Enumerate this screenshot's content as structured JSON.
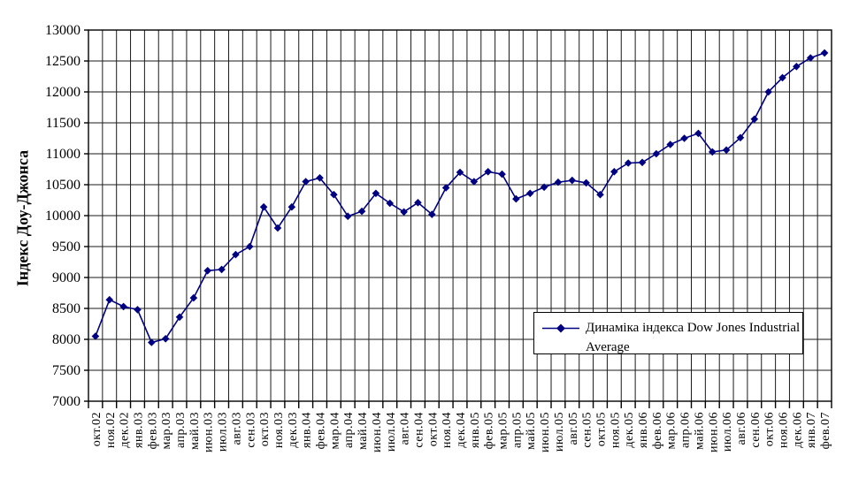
{
  "chart_data": {
    "type": "line",
    "title": "",
    "ylabel": "Індекс Доу-Джонса",
    "xlabel": "",
    "ylim": [
      7000,
      13000
    ],
    "ytick_step": 500,
    "grid": true,
    "legend": {
      "position": "right-middle",
      "lines": [
        "Динаміка індекса Dow Jones Industrial",
        "Average"
      ]
    },
    "categories": [
      "окт.02",
      "ноя.02",
      "дек.02",
      "янв.03",
      "фев.03",
      "мар.03",
      "апр.03",
      "май.03",
      "июн.03",
      "июл.03",
      "авг.03",
      "сен.03",
      "окт.03",
      "ноя.03",
      "дек.03",
      "янв.04",
      "фев.04",
      "мар.04",
      "апр.04",
      "май.04",
      "июн.04",
      "июл.04",
      "авг.04",
      "сен.04",
      "окт.04",
      "ноя.04",
      "дек.04",
      "янв.05",
      "фев.05",
      "мар.05",
      "апр.05",
      "май.05",
      "июн.05",
      "июл.05",
      "авг.05",
      "сен.05",
      "окт.05",
      "ноя.05",
      "дек.05",
      "янв.06",
      "фев.06",
      "мар.06",
      "апр.06",
      "май.06",
      "июн.06",
      "июл.06",
      "авг.06",
      "сен.06",
      "окт.06",
      "ноя.06",
      "дек.06",
      "янв.07",
      "фев.07"
    ],
    "series": [
      {
        "name": "Динаміка індекса Dow Jones Industrial Average",
        "color": "#000080",
        "marker": "diamond",
        "values": [
          8050,
          8640,
          8530,
          8480,
          7950,
          8010,
          8360,
          8670,
          9110,
          9130,
          9370,
          9500,
          10140,
          9800,
          10140,
          10550,
          10610,
          10340,
          9990,
          10070,
          10360,
          10200,
          10060,
          10210,
          10020,
          10450,
          10700,
          10550,
          10710,
          10670,
          10270,
          10360,
          10460,
          10540,
          10570,
          10530,
          10340,
          10710,
          10850,
          10860,
          11000,
          11150,
          11250,
          11330,
          11030,
          11060,
          11260,
          11560,
          12000,
          12230,
          12410,
          12550,
          12630
        ]
      }
    ],
    "colors": {
      "series": "#000080",
      "grid": "#000000",
      "text": "#000000",
      "background": "#ffffff"
    }
  }
}
